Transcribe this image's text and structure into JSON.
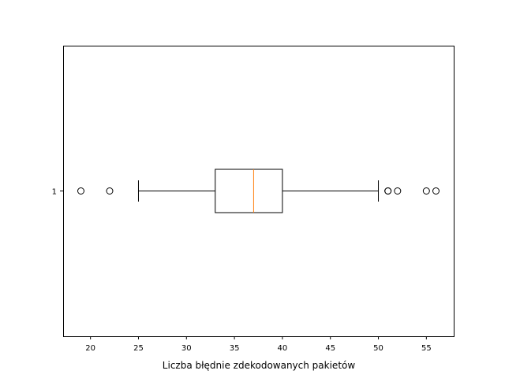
{
  "chart_data": {
    "type": "boxplot",
    "orientation": "horizontal",
    "title": "",
    "xlabel": "Liczba błędnie zdekodowanych pakietów",
    "ylabel": "",
    "xlim": [
      17.15,
      57.85
    ],
    "ylim": [
      0.5,
      1.5
    ],
    "x_ticks": [
      20,
      25,
      30,
      35,
      40,
      45,
      50,
      55
    ],
    "y_ticks": [
      1
    ],
    "grid": false,
    "boxes": [
      {
        "label": "1",
        "position": 1,
        "whisker_low": 25,
        "q1": 33,
        "median": 37,
        "q3": 40,
        "whisker_high": 50,
        "outliers": [
          19,
          22,
          51,
          51,
          52,
          55,
          56
        ]
      }
    ],
    "colors": {
      "box": "#000000",
      "median": "#ff7f0e",
      "whisker": "#000000",
      "outlier": "#000000"
    }
  }
}
